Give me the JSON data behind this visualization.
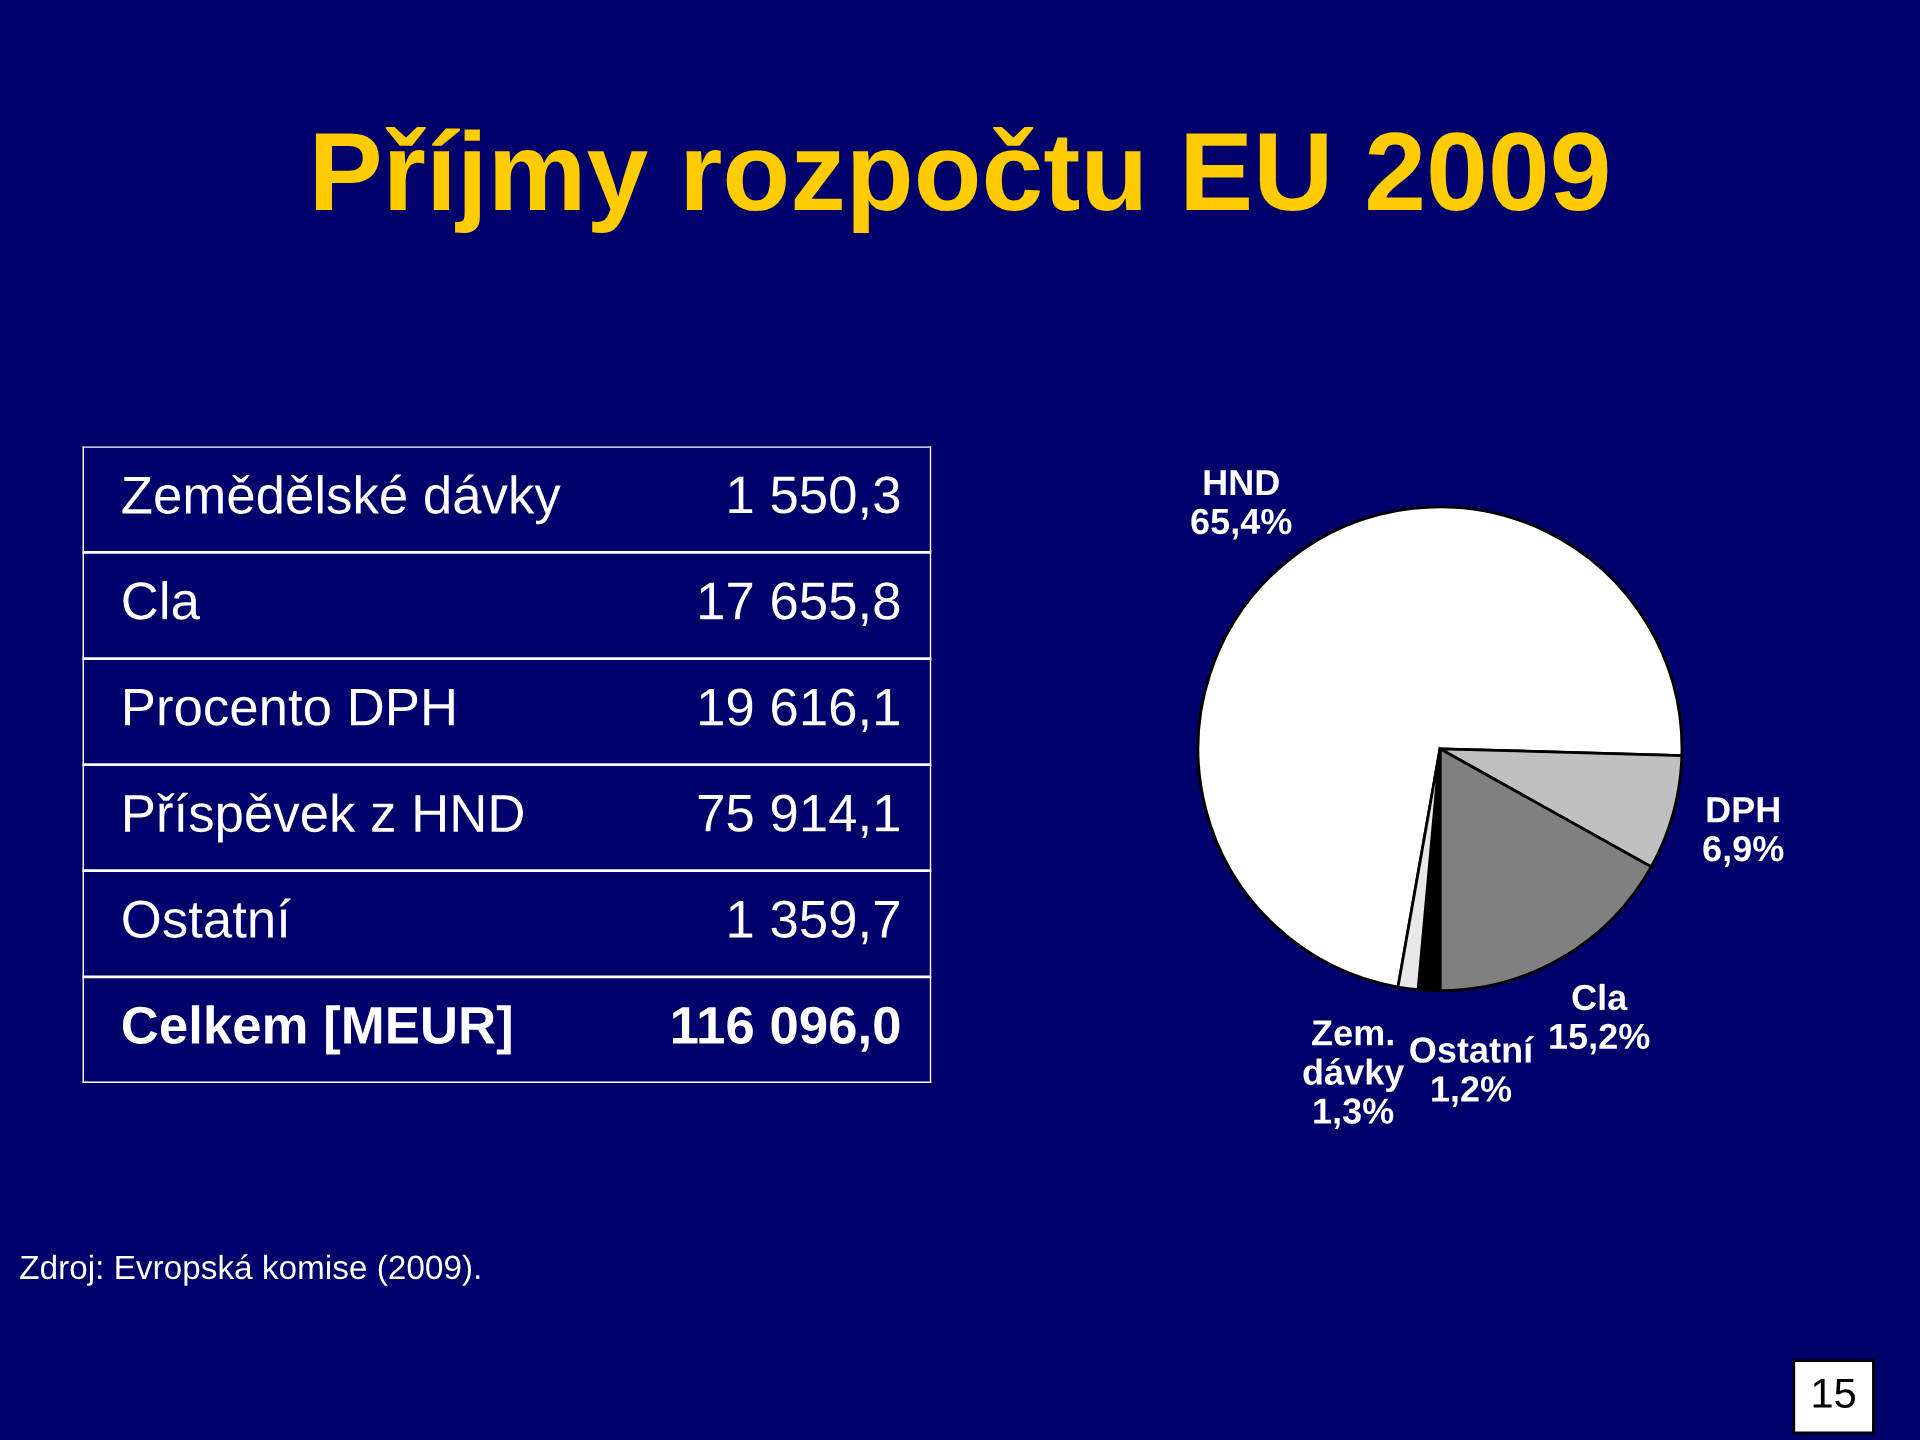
{
  "chart_data": [
    {
      "type": "other",
      "title": "Příjmy rozpočtu EU 2009",
      "categories": [
        "Zemědělské dávky",
        "Cla",
        "Procento DPH",
        "Příspěvek z HND",
        "Ostatní",
        "Celkem [MEUR]"
      ],
      "value_labels": [
        "1 550,3",
        "17 655,8",
        "19 616,1",
        "75 914,1",
        "1 359,7",
        "116 096,0"
      ],
      "annotations": [
        "Zdroj: Evropská komise (2009).",
        "15"
      ]
    },
    {
      "type": "pie",
      "categories": [
        "HND",
        "DPH",
        "Cla",
        "Zem.\ndávky",
        "Ostatní"
      ],
      "values": [
        65.4,
        6.9,
        15.2,
        1.3,
        1.2
      ],
      "value_labels": [
        "65,4%",
        "6,9%",
        "15,2%",
        "1,3%",
        "1,2%"
      ],
      "colors": [
        "#ffffff",
        "#c0c0c0",
        "#808080",
        "#000000",
        "#e8e8e8"
      ]
    }
  ]
}
